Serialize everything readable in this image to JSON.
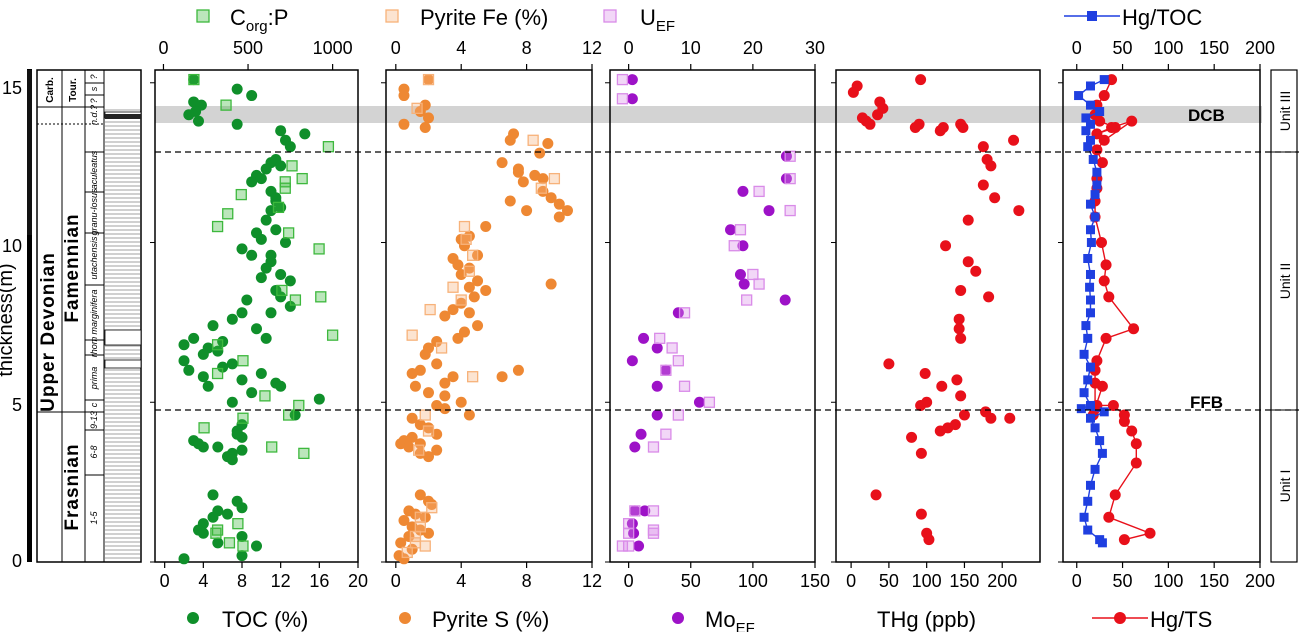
{
  "chart_data": [
    {
      "type": "scatter",
      "ylabel": "thickness(m)",
      "ylim": [
        0,
        15.4
      ],
      "yticks": [
        0,
        5,
        10,
        15
      ],
      "bottom_axis": {
        "label": "TOC (%)",
        "lim": [
          -1,
          20
        ],
        "ticks": [
          "0",
          "4",
          "8",
          "12",
          "16",
          "20"
        ]
      },
      "top_axis": {
        "label": "Corg:P",
        "lim": [
          -50,
          1150
        ],
        "ticks": [
          "0",
          "500",
          "1000"
        ]
      },
      "series": [
        {
          "name": "TOC (%)",
          "color": "#0f8f2a",
          "marker": "circle",
          "axis": "bottom",
          "x": [
            3.0,
            7.5,
            9.0,
            3.0,
            3.8,
            3.2,
            2.5,
            3.5,
            7.5,
            12.0,
            14.5,
            12.5,
            13.0,
            11.0,
            10.5,
            9.5,
            9.0,
            11.5,
            12.0,
            10.0,
            11.0,
            11.5,
            12.0,
            11.5,
            11.0,
            10.5,
            9.5,
            10.0,
            8.0,
            9.0,
            11.5,
            12.5,
            11.0,
            11.0,
            10.5,
            12.0,
            13.0,
            10.0,
            11.5,
            12.0,
            8.5,
            13.0,
            8.0,
            7.0,
            5.0,
            11.0,
            9.5,
            10.5,
            6.0,
            3.0,
            2.0,
            4.5,
            4.0,
            5.5,
            2.0,
            7.0,
            2.5,
            4.0,
            6.0,
            10.0,
            8.0,
            11.5,
            12.0,
            4.5,
            9.0,
            16.0,
            7.0,
            13.5,
            8.0,
            7.5,
            8.0,
            7.5,
            3.0,
            4.0,
            3.5,
            5.5,
            8.0,
            7.0,
            6.5,
            7.0,
            5.0,
            7.5,
            8.0,
            5.5,
            6.5,
            5.0,
            4.0,
            3.5,
            4.0,
            8.0,
            9.5,
            2.0,
            8.0,
            5.5
          ],
          "y": [
            15.1,
            14.8,
            14.6,
            14.4,
            14.3,
            14.1,
            14.0,
            13.8,
            13.7,
            13.5,
            13.4,
            13.2,
            13.0,
            12.5,
            12.3,
            12.1,
            11.9,
            12.6,
            12.4,
            12.0,
            11.6,
            11.3,
            11.1,
            11.4,
            11.0,
            10.7,
            10.3,
            10.1,
            9.8,
            9.6,
            10.4,
            10.0,
            9.6,
            9.4,
            9.2,
            9.0,
            8.8,
            8.9,
            8.5,
            8.3,
            8.2,
            8.0,
            7.8,
            7.6,
            7.4,
            7.8,
            7.3,
            7.0,
            6.9,
            7.0,
            6.8,
            6.7,
            6.5,
            6.6,
            6.3,
            6.2,
            6.0,
            5.8,
            6.1,
            5.9,
            5.7,
            5.6,
            5.5,
            5.5,
            5.3,
            5.1,
            5.0,
            4.6,
            4.3,
            4.1,
            3.9,
            4.0,
            3.8,
            3.6,
            3.7,
            3.6,
            3.5,
            3.4,
            3.3,
            3.2,
            2.1,
            1.9,
            1.7,
            1.6,
            1.5,
            1.4,
            1.2,
            1.0,
            0.9,
            0.8,
            0.5,
            0.1,
            0.2,
            0.6
          ]
        },
        {
          "name": "Corg:P",
          "color": "#3db83d",
          "marker": "square-open",
          "axis": "top",
          "x": [
            180,
            370,
            975,
            760,
            820,
            720,
            460,
            380,
            320,
            680,
            720,
            740,
            920,
            930,
            780,
            700,
            320,
            320,
            470,
            600,
            740,
            800,
            240,
            640,
            830,
            440,
            310,
            390,
            470,
            1000,
            470,
            320
          ],
          "y": [
            15.1,
            14.3,
            13.0,
            12.4,
            12.0,
            11.7,
            11.5,
            10.9,
            10.5,
            11.1,
            11.9,
            10.3,
            9.8,
            8.3,
            8.2,
            8.5,
            6.8,
            5.9,
            6.3,
            5.2,
            4.6,
            4.9,
            4.2,
            3.6,
            3.4,
            1.2,
            0.9,
            0.6,
            0.5,
            7.1,
            4.5,
            1.0
          ]
        }
      ]
    },
    {
      "type": "scatter",
      "bottom_axis": {
        "label": "Pyrite S (%)",
        "lim": [
          -0.6,
          12
        ],
        "ticks": [
          "0",
          "4",
          "8",
          "12"
        ]
      },
      "top_axis": {
        "label": "Pyrite Fe (%)",
        "lim": [
          -0.6,
          12
        ],
        "ticks": [
          "0",
          "4",
          "8",
          "12"
        ]
      },
      "series": [
        {
          "name": "Pyrite S (%)",
          "color": "#ee8833",
          "marker": "circle",
          "axis": "bottom",
          "x": [
            2.0,
            0.5,
            0.5,
            1.8,
            1.5,
            2.0,
            0.5,
            1.8,
            7.2,
            7.0,
            9.3,
            6.5,
            7.5,
            8.5,
            7.8,
            9.0,
            9.5,
            10.0,
            8.8,
            7.5,
            9.0,
            8.0,
            7.0,
            10.5,
            10.0,
            5.5,
            4.5,
            4.0,
            4.2,
            5.0,
            3.5,
            3.8,
            4.5,
            4.0,
            5.0,
            4.5,
            5.5,
            4.8,
            4.0,
            3.5,
            4.5,
            9.5,
            3.0,
            5.0,
            4.2,
            3.8,
            2.5,
            2.0,
            1.8,
            2.5,
            1.5,
            1.0,
            3.5,
            3.0,
            1.2,
            2.0,
            3.0,
            4.0,
            7.5,
            6.5,
            2.5,
            3.0,
            4.5,
            1.0,
            1.5,
            2.0,
            2.5,
            1.0,
            1.5,
            2.5,
            1.5,
            2.0,
            0.5,
            0.3,
            0.8,
            1.5,
            2.0,
            2.2,
            0.8,
            1.2,
            1.8,
            0.5,
            1.0,
            1.5,
            2.0,
            0.8,
            0.3,
            0.2,
            0.5,
            1.0
          ],
          "y": [
            15.1,
            14.8,
            14.6,
            14.3,
            14.1,
            13.9,
            13.7,
            13.6,
            13.4,
            13.2,
            13.1,
            12.5,
            12.3,
            12.1,
            11.9,
            11.6,
            11.4,
            11.2,
            12.8,
            12.2,
            12.0,
            11.0,
            11.3,
            11.0,
            10.8,
            10.5,
            10.2,
            10.1,
            9.9,
            9.6,
            9.5,
            9.3,
            9.2,
            9.0,
            8.8,
            8.6,
            8.5,
            8.3,
            8.1,
            7.9,
            7.8,
            8.7,
            7.7,
            7.4,
            7.2,
            7.0,
            6.9,
            6.7,
            6.5,
            6.2,
            6.0,
            5.9,
            5.8,
            5.6,
            5.5,
            5.3,
            5.2,
            5.0,
            6.0,
            5.8,
            4.9,
            4.8,
            4.6,
            4.5,
            4.3,
            4.2,
            4.0,
            3.9,
            3.7,
            3.5,
            3.4,
            3.3,
            3.8,
            3.7,
            3.6,
            2.1,
            1.9,
            1.8,
            1.6,
            1.5,
            1.4,
            1.3,
            1.1,
            1.0,
            0.9,
            0.8,
            0.6,
            0.2,
            0.1,
            0.4
          ]
        },
        {
          "name": "Pyrite Fe (%)",
          "color": "#f7b27a",
          "marker": "square-open",
          "axis": "top",
          "x": [
            2.0,
            1.3,
            8.4,
            9.7,
            8.9,
            4.2,
            4.3,
            4.7,
            4.5,
            4.0,
            3.5,
            2.1,
            1.0,
            2.8,
            4.7,
            1.8,
            2.0,
            1.4,
            2.2,
            1.2,
            0.7,
            1.5,
            1.2,
            1.8,
            1.5
          ],
          "y": [
            15.1,
            14.2,
            13.2,
            12.0,
            11.7,
            10.5,
            10.1,
            9.6,
            9.1,
            8.2,
            8.6,
            7.9,
            7.1,
            6.7,
            5.8,
            4.6,
            4.1,
            3.5,
            1.7,
            0.6,
            0.3,
            1.1,
            0.8,
            0.5,
            1.4
          ]
        }
      ]
    },
    {
      "type": "scatter",
      "bottom_axis": {
        "label": "MoEF",
        "lim": [
          -15,
          150
        ],
        "ticks": [
          "0",
          "50",
          "100",
          "150"
        ]
      },
      "top_axis": {
        "label": "UEF",
        "lim": [
          -3,
          30
        ],
        "ticks": [
          "0",
          "10",
          "20",
          "30"
        ]
      },
      "series": [
        {
          "name": "MoEF",
          "color": "#9d12c7",
          "marker": "circle",
          "axis": "bottom",
          "x": [
            3,
            3,
            127,
            127,
            92,
            113,
            82,
            92,
            90,
            93,
            126,
            40,
            12,
            23,
            3,
            30,
            23,
            57,
            23,
            10,
            5,
            5,
            13,
            3,
            4,
            8
          ],
          "y": [
            15.1,
            14.5,
            12.7,
            12.0,
            11.6,
            11.0,
            10.4,
            9.9,
            9.0,
            8.7,
            8.2,
            7.8,
            7.0,
            6.7,
            6.3,
            6.0,
            5.5,
            5.0,
            4.6,
            4.0,
            3.6,
            1.6,
            1.6,
            1.2,
            0.9,
            0.5
          ]
        },
        {
          "name": "UEF",
          "color": "#d98be8",
          "marker": "square-open",
          "axis": "top",
          "x": [
            -1,
            -1,
            26,
            26,
            21,
            26,
            18,
            17,
            20,
            21,
            19,
            9,
            5,
            7,
            8,
            6,
            9,
            13,
            8,
            6,
            4,
            4,
            4,
            4,
            1,
            0,
            0,
            0,
            -1
          ],
          "y": [
            15.1,
            14.5,
            12.7,
            12.0,
            11.6,
            11.0,
            10.4,
            9.9,
            9.0,
            8.7,
            8.2,
            7.8,
            7.0,
            6.7,
            6.3,
            6.0,
            5.5,
            5.0,
            4.6,
            4.0,
            3.6,
            1.6,
            0.9,
            1.0,
            1.6,
            1.2,
            0.9,
            0.5,
            0.5
          ]
        }
      ]
    },
    {
      "type": "scatter",
      "xlabel": "THg (ppb)",
      "bottom_axis": {
        "label": "THg (ppb)",
        "lim": [
          -20,
          250
        ],
        "ticks": [
          "0",
          "50",
          "100",
          "150",
          "200"
        ]
      },
      "series": [
        {
          "name": "THg (ppb)",
          "color": "#e8101a",
          "marker": "circle",
          "axis": "bottom",
          "x": [
            92,
            8,
            3,
            38,
            42,
            35,
            15,
            20,
            25,
            85,
            90,
            118,
            122,
            145,
            148,
            175,
            180,
            185,
            215,
            175,
            190,
            222,
            155,
            125,
            155,
            165,
            145,
            182,
            143,
            143,
            145,
            50,
            98,
            140,
            120,
            145,
            100,
            92,
            178,
            210,
            185,
            150,
            128,
            118,
            138,
            80,
            93,
            33,
            93,
            100,
            103
          ],
          "y": [
            15.1,
            14.9,
            14.7,
            14.4,
            14.2,
            14.0,
            13.9,
            13.8,
            13.7,
            13.6,
            13.7,
            13.5,
            13.6,
            13.7,
            13.6,
            13.0,
            12.6,
            12.4,
            13.2,
            11.8,
            11.4,
            11.0,
            10.7,
            9.9,
            9.4,
            9.1,
            8.5,
            8.3,
            7.3,
            7.6,
            7.0,
            6.2,
            5.9,
            5.7,
            5.5,
            5.2,
            5.0,
            4.9,
            4.7,
            4.5,
            4.5,
            4.6,
            4.2,
            4.1,
            4.3,
            3.9,
            3.4,
            2.1,
            1.5,
            0.9,
            0.7
          ]
        }
      ]
    },
    {
      "type": "line",
      "xlabel": "Hg/TS",
      "bottom_axis": {
        "label": "Hg/TS",
        "lim": [
          -15,
          200
        ],
        "ticks": [
          "0",
          "50",
          "100",
          "150",
          "200"
        ]
      },
      "top_axis": {
        "label": "Hg/TOC",
        "lim": [
          -15,
          200
        ],
        "ticks": [
          "0",
          "50",
          "100",
          "150",
          "200"
        ]
      },
      "series": [
        {
          "name": "Hg/TS",
          "color": "#e8101a",
          "marker": "circle",
          "axis": "bottom",
          "x": [
            38,
            30,
            22,
            20,
            25,
            42,
            22,
            38,
            60,
            30,
            22,
            28,
            22,
            22,
            20,
            20,
            27,
            32,
            30,
            35,
            62,
            32,
            22,
            20,
            20,
            20,
            28,
            20,
            18,
            22,
            40,
            52,
            52,
            60,
            65,
            65,
            42,
            35,
            80,
            52
          ],
          "y": [
            15.1,
            14.6,
            14.3,
            14.0,
            13.8,
            13.6,
            13.4,
            13.6,
            13.8,
            13.2,
            12.9,
            12.5,
            12.0,
            11.7,
            11.3,
            10.8,
            10.0,
            9.3,
            8.8,
            8.3,
            7.3,
            7.0,
            6.3,
            6.0,
            5.6,
            4.8,
            5.5,
            4.8,
            4.6,
            4.9,
            4.9,
            4.6,
            4.4,
            4.1,
            3.7,
            3.1,
            2.1,
            1.4,
            0.9,
            0.7
          ]
        },
        {
          "name": "Hg/TOC",
          "color": "#1f3fe0",
          "marker": "square",
          "axis": "top",
          "x": [
            30,
            15,
            2,
            15,
            25,
            10,
            15,
            10,
            15,
            12,
            18,
            22,
            22,
            20,
            15,
            20,
            15,
            16,
            12,
            15,
            14,
            15,
            15,
            10,
            12,
            8,
            15,
            12,
            8,
            15,
            5,
            30,
            15,
            20,
            25,
            28,
            20,
            15,
            12,
            8,
            12,
            25,
            28
          ],
          "y": [
            15.1,
            14.9,
            14.6,
            14.3,
            14.1,
            13.9,
            13.7,
            13.5,
            13.2,
            13.0,
            12.6,
            12.2,
            11.8,
            11.5,
            11.2,
            10.8,
            10.4,
            10.0,
            9.5,
            9.0,
            8.6,
            8.2,
            7.8,
            7.4,
            7.0,
            6.5,
            6.1,
            5.7,
            5.3,
            4.9,
            4.8,
            4.7,
            4.5,
            4.2,
            3.8,
            3.4,
            2.9,
            2.4,
            1.9,
            1.4,
            1.0,
            0.7,
            0.6
          ]
        }
      ]
    }
  ],
  "strat": {
    "system_upper": "Upper Devonian",
    "carb": "Carb.",
    "tour": "Tour.",
    "famennian": "Famennian",
    "frasnian": "Frasnian",
    "zones": [
      "?",
      "s",
      "?",
      "n.d.?",
      "aculeatus",
      "granu-losus",
      "utachensis",
      "marginifera",
      "rhom",
      "prima",
      "c",
      "9-13",
      "6-8",
      "1-5"
    ]
  },
  "boundaries": {
    "dcb": "DCB",
    "ffb": "FFB"
  },
  "units": [
    "Unit III",
    "Unit II",
    "Unit I"
  ],
  "colors": {
    "dcb_band": "#d3d3d3"
  }
}
